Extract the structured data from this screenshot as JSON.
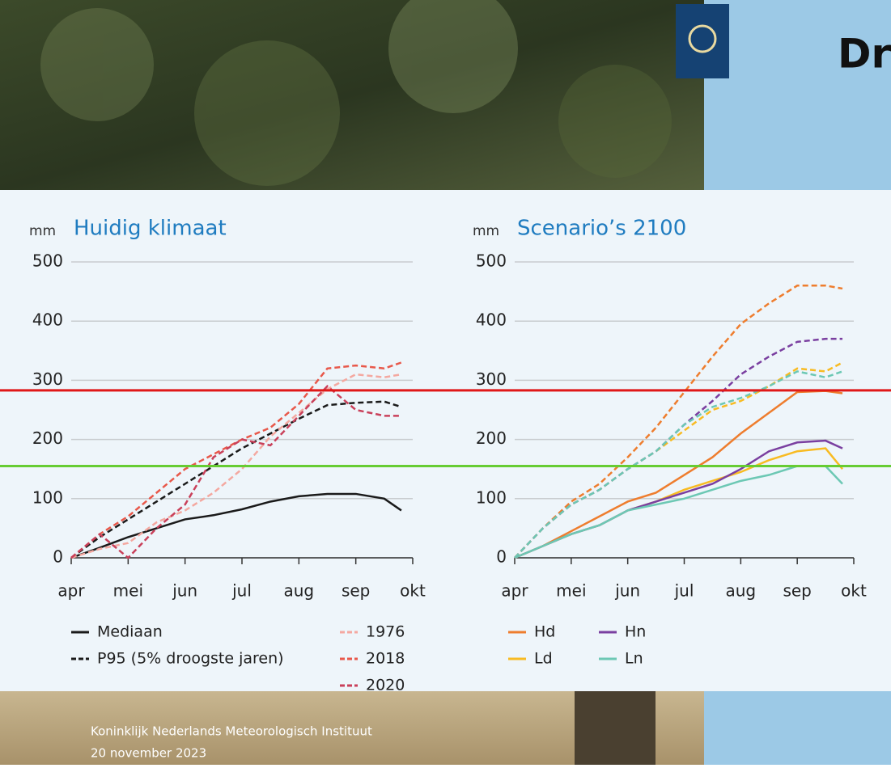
{
  "slide": {
    "title": "Dr",
    "footer": [
      "Koninklijk Nederlands Meteorologisch Instituut",
      "20 november 2023"
    ]
  },
  "overlay_lines": [
    {
      "value": 283,
      "color": "#e01818"
    },
    {
      "value": 155,
      "color": "#66cc33"
    }
  ],
  "chart_data": [
    {
      "type": "line",
      "unit": "mm",
      "title": "Huidig klimaat",
      "x": [
        0,
        0.5,
        1,
        1.5,
        2,
        2.5,
        3,
        3.5,
        4,
        4.5,
        5,
        5.5,
        5.8
      ],
      "xlim": [
        0,
        6
      ],
      "xticks": [
        {
          "value": 0,
          "label": "apr"
        },
        {
          "value": 1,
          "label": "mei"
        },
        {
          "value": 2,
          "label": "jun"
        },
        {
          "value": 3,
          "label": "jul"
        },
        {
          "value": 4,
          "label": "aug"
        },
        {
          "value": 5,
          "label": "sep"
        },
        {
          "value": 6,
          "label": "okt"
        }
      ],
      "ylim": [
        0,
        500
      ],
      "yticks": [
        0,
        100,
        200,
        300,
        400,
        500
      ],
      "grid": true,
      "series": [
        {
          "name": "Mediaan",
          "color": "#1a1a1a",
          "dash": false,
          "values": [
            0,
            17,
            35,
            50,
            65,
            72,
            82,
            95,
            104,
            108,
            108,
            100,
            80
          ]
        },
        {
          "name": "P95 (5% droogste jaren)",
          "color": "#1a1a1a",
          "dash": true,
          "values": [
            0,
            35,
            65,
            95,
            125,
            155,
            185,
            210,
            235,
            258,
            262,
            264,
            255
          ]
        },
        {
          "name": "1976",
          "color": "#f4a8a0",
          "dash": true,
          "values": [
            0,
            15,
            25,
            60,
            80,
            110,
            150,
            205,
            245,
            285,
            310,
            305,
            310
          ]
        },
        {
          "name": "2018",
          "color": "#e8584a",
          "dash": true,
          "values": [
            0,
            40,
            70,
            110,
            150,
            175,
            200,
            220,
            260,
            320,
            325,
            320,
            330
          ]
        },
        {
          "name": "2020",
          "color": "#c9405a",
          "dash": true,
          "values": [
            0,
            40,
            0,
            50,
            90,
            170,
            200,
            190,
            240,
            290,
            250,
            240,
            240
          ]
        }
      ]
    },
    {
      "type": "line",
      "unit": "mm",
      "title": "Scenario’s 2100",
      "x": [
        0,
        0.5,
        1,
        1.5,
        2,
        2.5,
        3,
        3.5,
        4,
        4.5,
        5,
        5.5,
        5.8
      ],
      "xlim": [
        0,
        6
      ],
      "xticks": [
        {
          "value": 0,
          "label": "apr"
        },
        {
          "value": 1,
          "label": "mei"
        },
        {
          "value": 2,
          "label": "jun"
        },
        {
          "value": 3,
          "label": "jul"
        },
        {
          "value": 4,
          "label": "aug"
        },
        {
          "value": 5,
          "label": "sep"
        },
        {
          "value": 6,
          "label": "okt"
        }
      ],
      "ylim": [
        0,
        500
      ],
      "yticks": [
        0,
        100,
        200,
        300,
        400,
        500
      ],
      "grid": true,
      "series": [
        {
          "name": "Hd",
          "color": "#ee7d2e",
          "dash": false,
          "values": [
            0,
            20,
            45,
            70,
            95,
            110,
            140,
            170,
            210,
            245,
            280,
            282,
            278
          ]
        },
        {
          "name": "Ld",
          "color": "#f8bb22",
          "dash": false,
          "values": [
            0,
            20,
            40,
            55,
            80,
            95,
            115,
            130,
            145,
            165,
            180,
            185,
            150
          ]
        },
        {
          "name": "Hn",
          "color": "#7a3fa0",
          "dash": false,
          "values": [
            0,
            20,
            40,
            55,
            80,
            95,
            110,
            125,
            150,
            180,
            195,
            198,
            185
          ]
        },
        {
          "name": "Ln",
          "color": "#6cc8b4",
          "dash": false,
          "values": [
            0,
            20,
            40,
            55,
            80,
            90,
            100,
            115,
            130,
            140,
            155,
            155,
            125
          ]
        },
        {
          "color": "#ee7d2e",
          "dash": true,
          "values": [
            0,
            50,
            95,
            125,
            170,
            220,
            280,
            340,
            395,
            430,
            460,
            460,
            455
          ]
        },
        {
          "color": "#f8bb22",
          "dash": true,
          "values": [
            0,
            50,
            90,
            115,
            150,
            180,
            215,
            250,
            265,
            290,
            320,
            315,
            330
          ]
        },
        {
          "color": "#7a3fa0",
          "dash": true,
          "values": [
            0,
            50,
            90,
            115,
            150,
            180,
            225,
            265,
            310,
            340,
            365,
            370,
            370
          ]
        },
        {
          "color": "#6cc8b4",
          "dash": true,
          "values": [
            0,
            50,
            90,
            115,
            150,
            180,
            225,
            255,
            270,
            290,
            315,
            305,
            315
          ]
        }
      ]
    }
  ]
}
